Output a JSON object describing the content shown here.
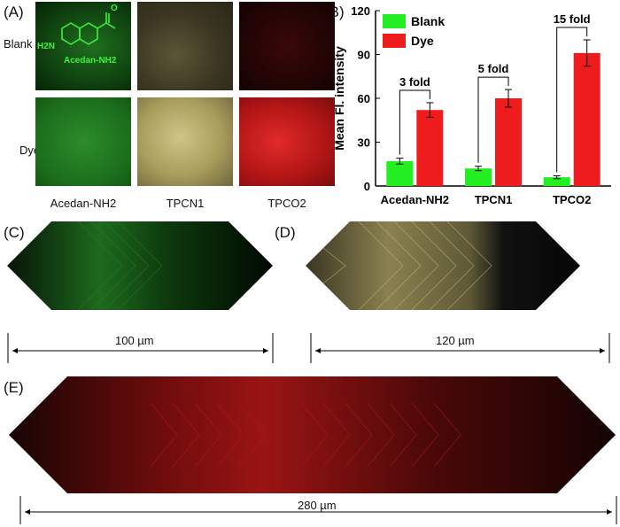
{
  "panels": {
    "a": "(A)",
    "b": "(B)",
    "c": "(C)",
    "d": "(D)",
    "e": "(E)"
  },
  "panel_a": {
    "row_labels": [
      "Blank",
      "Dye"
    ],
    "col_labels": [
      "Acedan-NH2",
      "TPCN1",
      "TPCO2"
    ],
    "molecule_label": "Acedan-NH2",
    "molecule_group": "H2N",
    "tile_colors": {
      "green": "#2f9a2f",
      "yellow": "#b9ad6a",
      "red": "#c41f1f"
    }
  },
  "chart_data": {
    "type": "bar",
    "categories": [
      "Acedan-NH2",
      "TPCN1",
      "TPCO2"
    ],
    "series": [
      {
        "name": "Blank",
        "values": [
          17,
          12,
          6
        ],
        "errors": [
          2,
          1.5,
          1
        ],
        "color": "#22ee22"
      },
      {
        "name": "Dye",
        "values": [
          52,
          60,
          91
        ],
        "errors": [
          5,
          6,
          9
        ],
        "color": "#ee1c1c"
      }
    ],
    "ylabel": "Mean Fl. intensity",
    "ylim": [
      0,
      120
    ],
    "yticks": [
      0,
      30,
      60,
      90,
      120
    ],
    "annotations": [
      "3 fold",
      "5 fold",
      "15 fold"
    ],
    "legend_position": "top-left"
  },
  "scalebars": {
    "c": "100 µm",
    "d": "120 µm",
    "e": "280 µm"
  }
}
